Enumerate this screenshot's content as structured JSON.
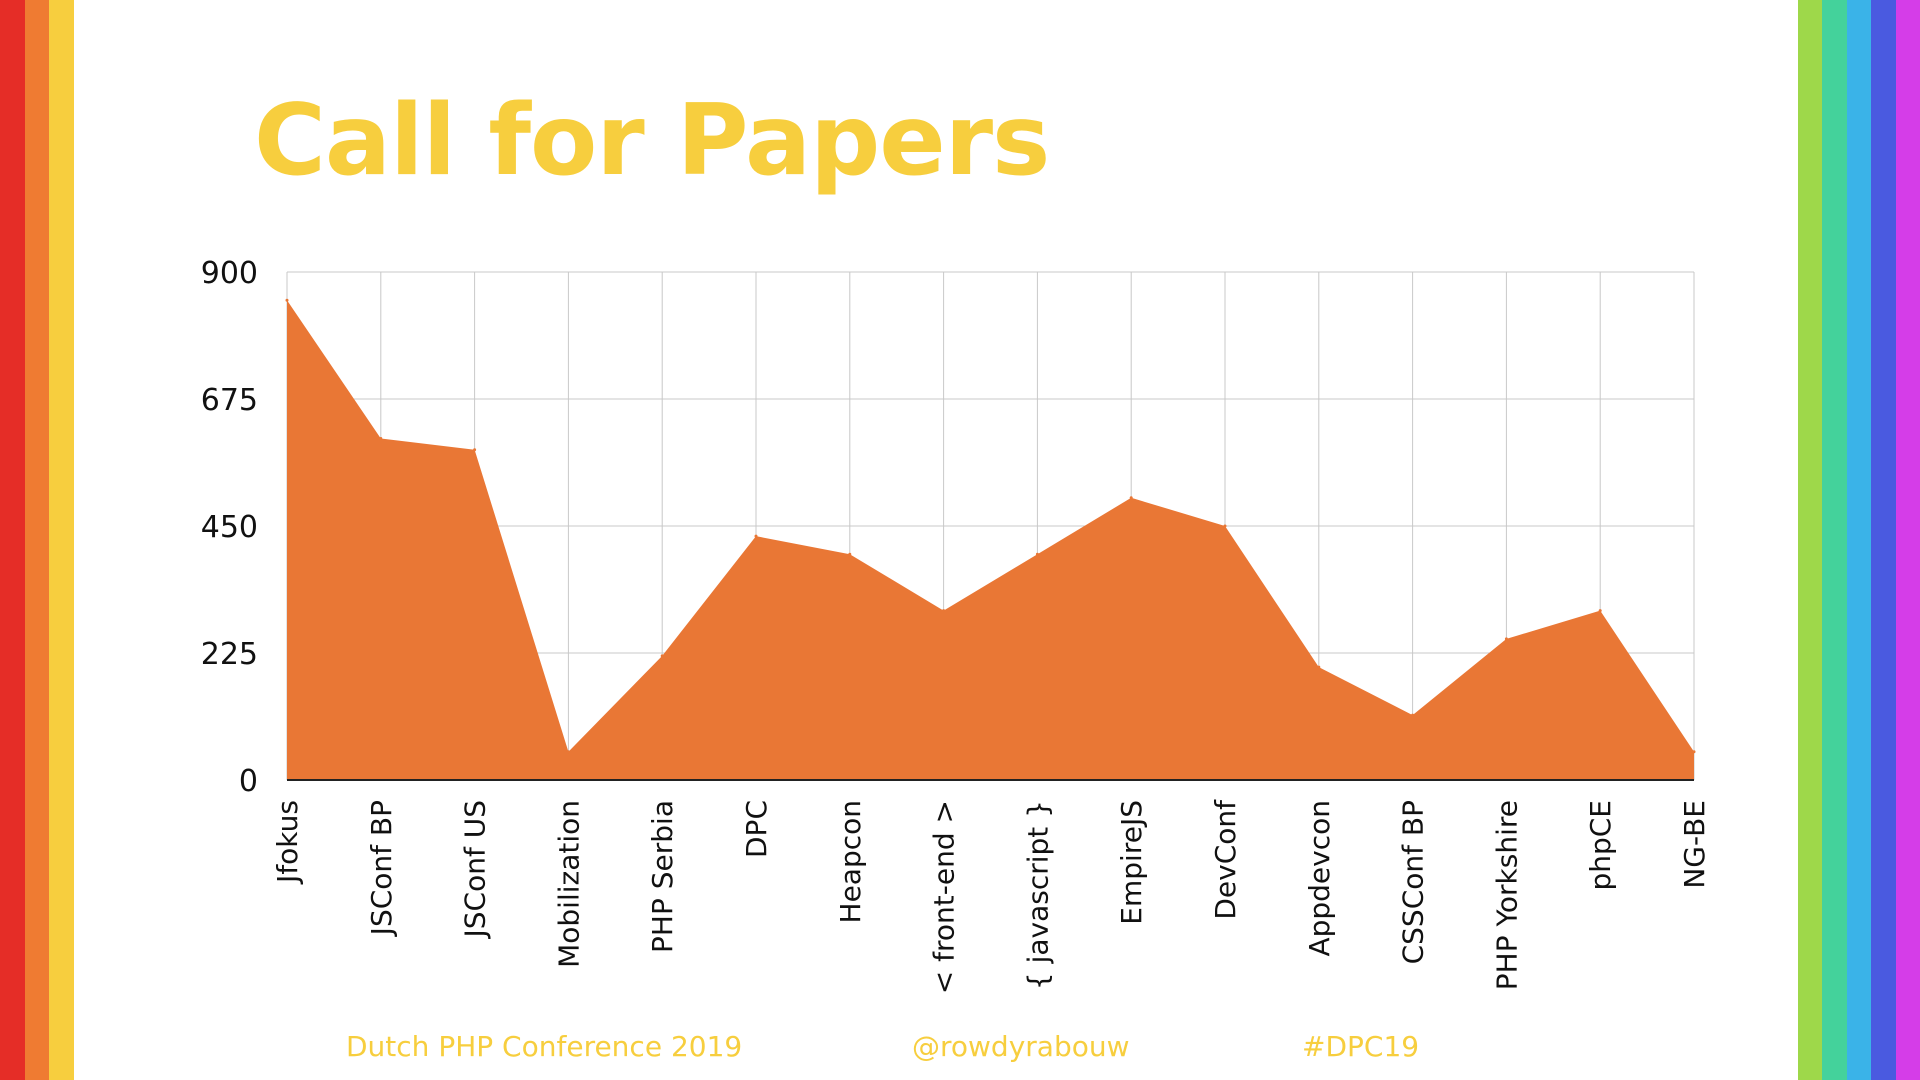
{
  "slide": {
    "title": "Call for Papers",
    "footer": {
      "conference": "Dutch PHP Conference 2019",
      "handle": "@rowdyrabouw",
      "hashtag": "#DPC19"
    }
  },
  "colors": {
    "title": "#f7ce3e",
    "area": "#e97735",
    "grid": "#c8c8c8",
    "left_stripes": [
      "#e52d27",
      "#ef7b32",
      "#f7ce3e"
    ],
    "right_stripes": [
      "#9ed84a",
      "#44d29b",
      "#3ab3e8",
      "#4a5ae0",
      "#d53de8"
    ]
  },
  "chart_data": {
    "type": "area",
    "categories": [
      "Jfokus",
      "JSConf BP",
      "JSConf US",
      "Mobilization",
      "PHP Serbia",
      "DPC",
      "Heapcon",
      "< front-end >",
      "{ javascript }",
      "EmpireJS",
      "DevConf",
      "Appdevcon",
      "CSSConf BP",
      "PHP Yorkshire",
      "phpCE",
      "NG-BE"
    ],
    "values": [
      850,
      605,
      585,
      50,
      220,
      432,
      400,
      300,
      400,
      500,
      450,
      200,
      115,
      250,
      300,
      50
    ],
    "ylim": [
      0,
      900
    ],
    "yticks": [
      "0",
      "225",
      "450",
      "675",
      "900"
    ],
    "grid": true,
    "legend": "none"
  }
}
